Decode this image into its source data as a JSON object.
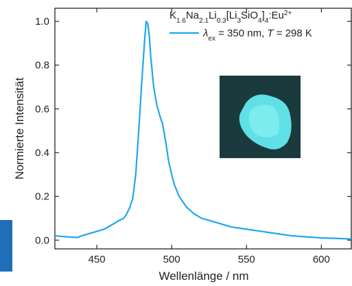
{
  "chart_data": {
    "type": "line",
    "annotation": [
      {
        "text": "K"
      },
      {
        "sub": "1.6"
      },
      {
        "text": "Na"
      },
      {
        "sub": "2.1"
      },
      {
        "text": "Li"
      },
      {
        "sub": "0.3"
      },
      {
        "text": "[Li"
      },
      {
        "sub": "3"
      },
      {
        "text": "SiO"
      },
      {
        "sub": "4"
      },
      {
        "text": "]"
      },
      {
        "sub": "4"
      },
      {
        "text": ":Eu"
      },
      {
        "sup": "2+"
      }
    ],
    "x_label": "Wellenlänge / nm",
    "y_label": "Normierte Intensität",
    "xlim": [
      422,
      620
    ],
    "ylim": [
      -0.04,
      1.06
    ],
    "xticks": [
      450,
      500,
      550,
      600
    ],
    "yticks": [
      {
        "value": 0,
        "label": "0.0"
      },
      0.2,
      0.4,
      0.6,
      0.8,
      {
        "value": 1,
        "label": "1.0"
      }
    ],
    "series": [
      {
        "name": [
          {
            "italic": "λ"
          },
          {
            "sub": "ex"
          },
          {
            "text": " = 350 nm, "
          },
          {
            "italic": "T"
          },
          {
            "text": " = 298 K"
          }
        ],
        "color": "#1fa6ee",
        "x": [
          422,
          430,
          437,
          440,
          445,
          450,
          455,
          460,
          465,
          468,
          470,
          472,
          474,
          476,
          478,
          480,
          482,
          483,
          484,
          485,
          486,
          488,
          490,
          492,
          494,
          496,
          498,
          500,
          502,
          505,
          510,
          515,
          520,
          530,
          540,
          550,
          560,
          570,
          580,
          590,
          600,
          610,
          620
        ],
        "values": [
          0.02,
          0.015,
          0.012,
          0.02,
          0.03,
          0.04,
          0.05,
          0.07,
          0.09,
          0.1,
          0.12,
          0.15,
          0.19,
          0.3,
          0.5,
          0.72,
          0.92,
          1.0,
          0.99,
          0.94,
          0.84,
          0.7,
          0.62,
          0.57,
          0.53,
          0.45,
          0.36,
          0.3,
          0.25,
          0.2,
          0.15,
          0.12,
          0.1,
          0.08,
          0.06,
          0.05,
          0.04,
          0.03,
          0.02,
          0.015,
          0.01,
          0.008,
          0.005
        ]
      }
    ]
  }
}
